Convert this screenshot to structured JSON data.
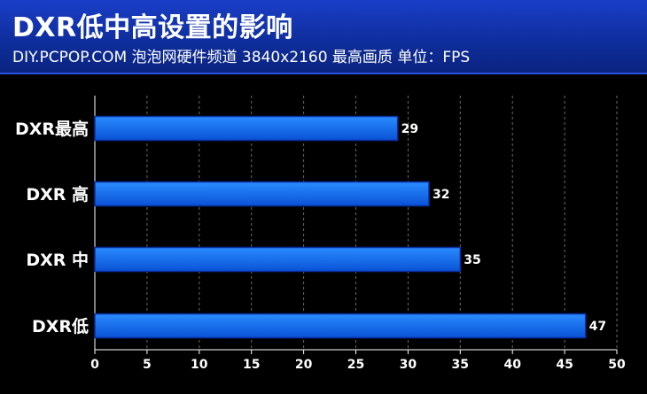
{
  "header": {
    "title": "DXR低中高设置的影响",
    "subtitle": "DIY.PCPOP.COM 泡泡网硬件频道 3840x2160 最高画质 单位：FPS"
  },
  "colors": {
    "background": "#000000",
    "banner": "#1235b5",
    "bar_fill_top": "#2a8cff",
    "bar_fill_bottom": "#0a52d6",
    "bar_border": "#0a2fa0",
    "axis_text": "#ffffff",
    "gridline": "#6a6a6a"
  },
  "chart_data": {
    "type": "bar",
    "orientation": "horizontal",
    "categories": [
      "DXR最高",
      "DXR 高",
      "DXR 中",
      "DXR低"
    ],
    "values": [
      29,
      32,
      35,
      47
    ],
    "xlim": [
      0,
      50
    ],
    "xticks": [
      0,
      5,
      10,
      15,
      20,
      25,
      30,
      35,
      40,
      45,
      50
    ],
    "grid": "vertical-dashed",
    "title": "",
    "xlabel": "",
    "ylabel": ""
  }
}
